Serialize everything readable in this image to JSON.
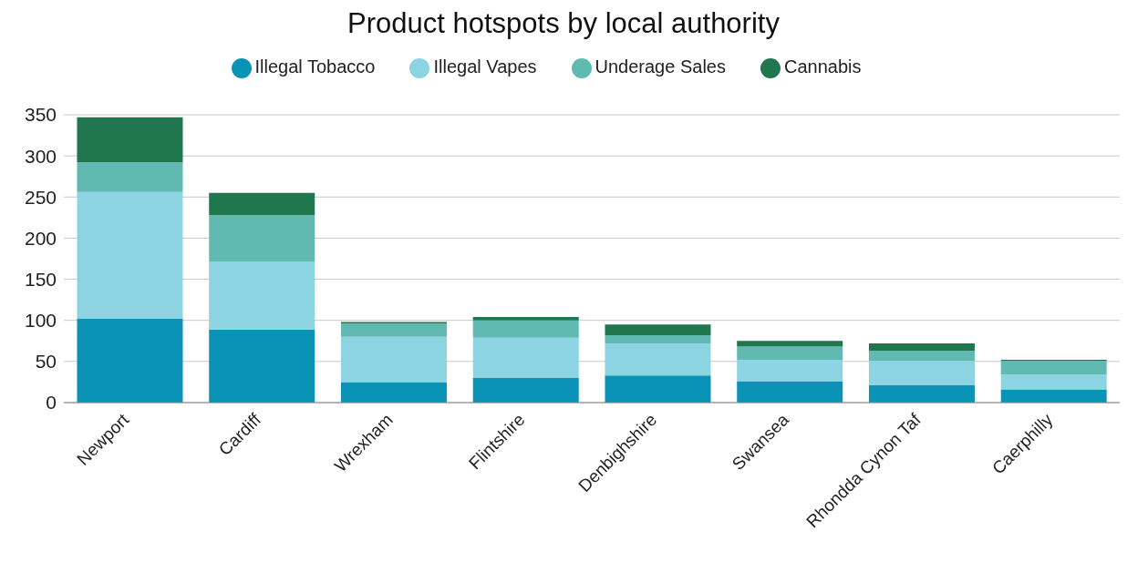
{
  "chart_data": {
    "type": "bar",
    "title": "Product hotspots by local authority",
    "categories": [
      "Newport",
      "Cardiff",
      "Wrexham",
      "Flintshire",
      "Denbighshire",
      "Swansea",
      "Rhondda Cynon Taf",
      "Caerphilly"
    ],
    "series": [
      {
        "name": "Illegal Tobacco",
        "color": "#0b93b7",
        "values": [
          102,
          89,
          25,
          30,
          33,
          26,
          21,
          16
        ]
      },
      {
        "name": "Illegal Vapes",
        "color": "#8dd4e3",
        "values": [
          154,
          82,
          55,
          49,
          39,
          26,
          30,
          18
        ]
      },
      {
        "name": "Underage Sales",
        "color": "#61bab2",
        "values": [
          36,
          57,
          16,
          21,
          10,
          16,
          12,
          17
        ]
      },
      {
        "name": "Cannabis",
        "color": "#20764d",
        "values": [
          55,
          27,
          2,
          4,
          13,
          7,
          9,
          1
        ]
      }
    ],
    "stacked": true,
    "ylim": [
      0,
      350
    ],
    "yticks": [
      0,
      50,
      100,
      150,
      200,
      250,
      300,
      350
    ],
    "grid": "y",
    "legend": "top"
  }
}
